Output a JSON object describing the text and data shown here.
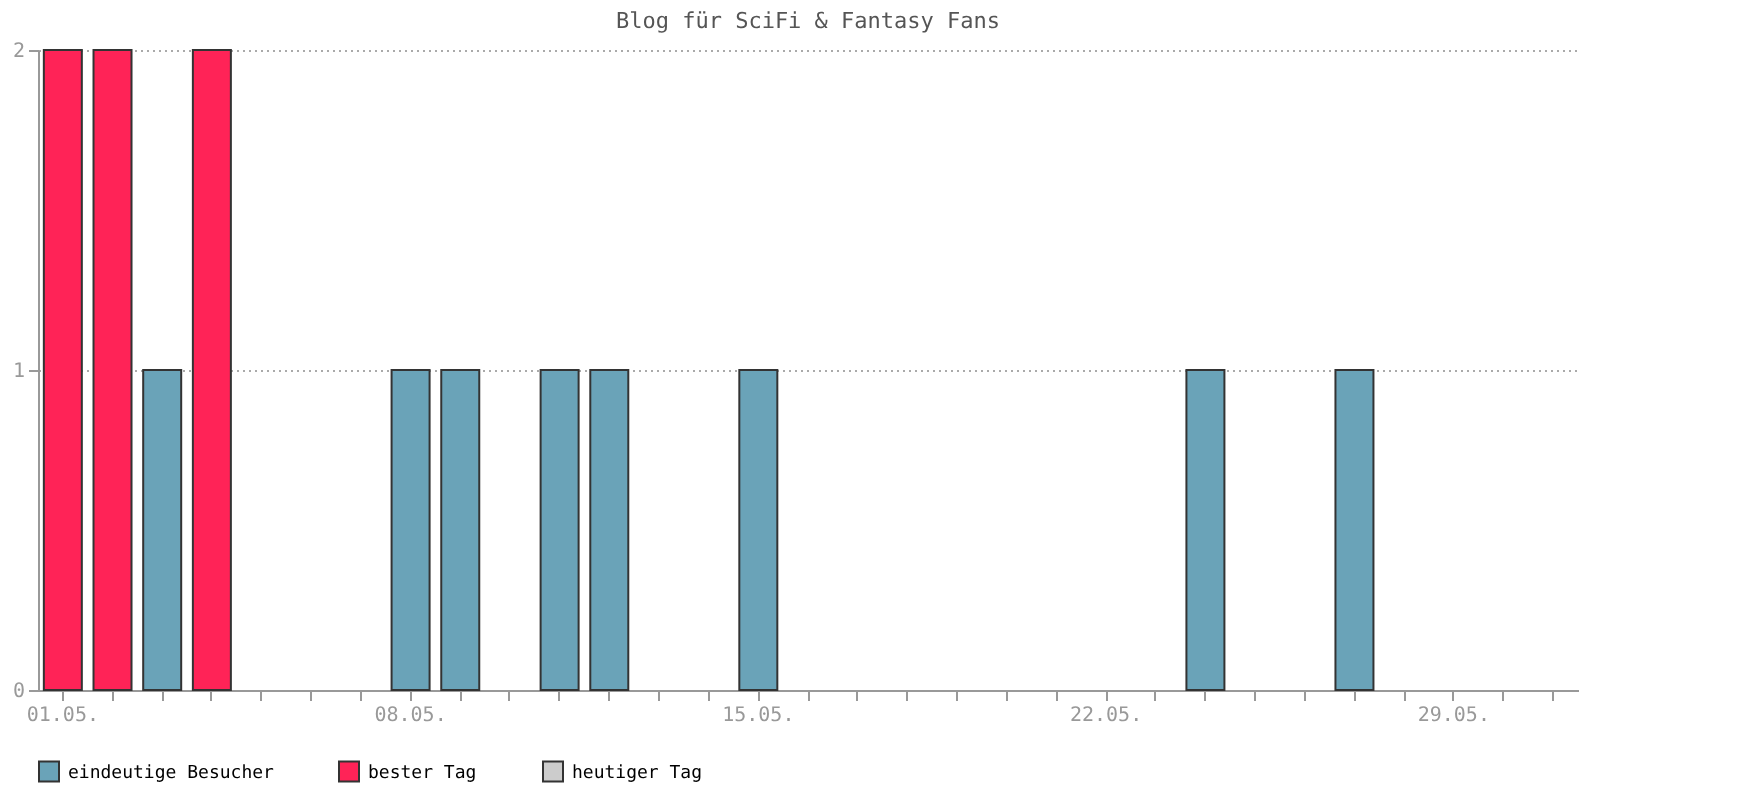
{
  "chart_data": {
    "type": "bar",
    "title": "Blog für SciFi & Fantasy Fans",
    "categories": [
      "01.05.",
      null,
      null,
      null,
      null,
      null,
      null,
      "08.05.",
      null,
      null,
      null,
      null,
      null,
      null,
      "15.05.",
      null,
      null,
      null,
      null,
      null,
      null,
      "22.05.",
      null,
      null,
      null,
      null,
      null,
      null,
      "29.05.",
      null,
      null
    ],
    "series": [
      {
        "name": "eindeutige Besucher",
        "color": "#6aa3b8",
        "values": [
          null,
          null,
          1,
          null,
          null,
          null,
          null,
          1,
          1,
          null,
          1,
          1,
          null,
          null,
          1,
          null,
          null,
          null,
          null,
          null,
          null,
          null,
          null,
          1,
          null,
          null,
          1,
          null,
          null,
          null,
          null
        ]
      },
      {
        "name": "bester Tag",
        "color": "#ff2357",
        "values": [
          2,
          2,
          null,
          2,
          null,
          null,
          null,
          null,
          null,
          null,
          null,
          null,
          null,
          null,
          null,
          null,
          null,
          null,
          null,
          null,
          null,
          null,
          null,
          null,
          null,
          null,
          null,
          null,
          null,
          null,
          null
        ]
      },
      {
        "name": "heutiger Tag",
        "color": "#cccccc",
        "values": [
          null,
          null,
          null,
          null,
          null,
          null,
          null,
          null,
          null,
          null,
          null,
          null,
          null,
          null,
          null,
          null,
          null,
          null,
          null,
          null,
          null,
          null,
          null,
          null,
          null,
          null,
          null,
          null,
          null,
          null,
          null
        ]
      }
    ],
    "ylim": [
      0,
      2
    ],
    "yticks": [
      0,
      1,
      2
    ],
    "grid": "y",
    "legend": "bottom"
  }
}
